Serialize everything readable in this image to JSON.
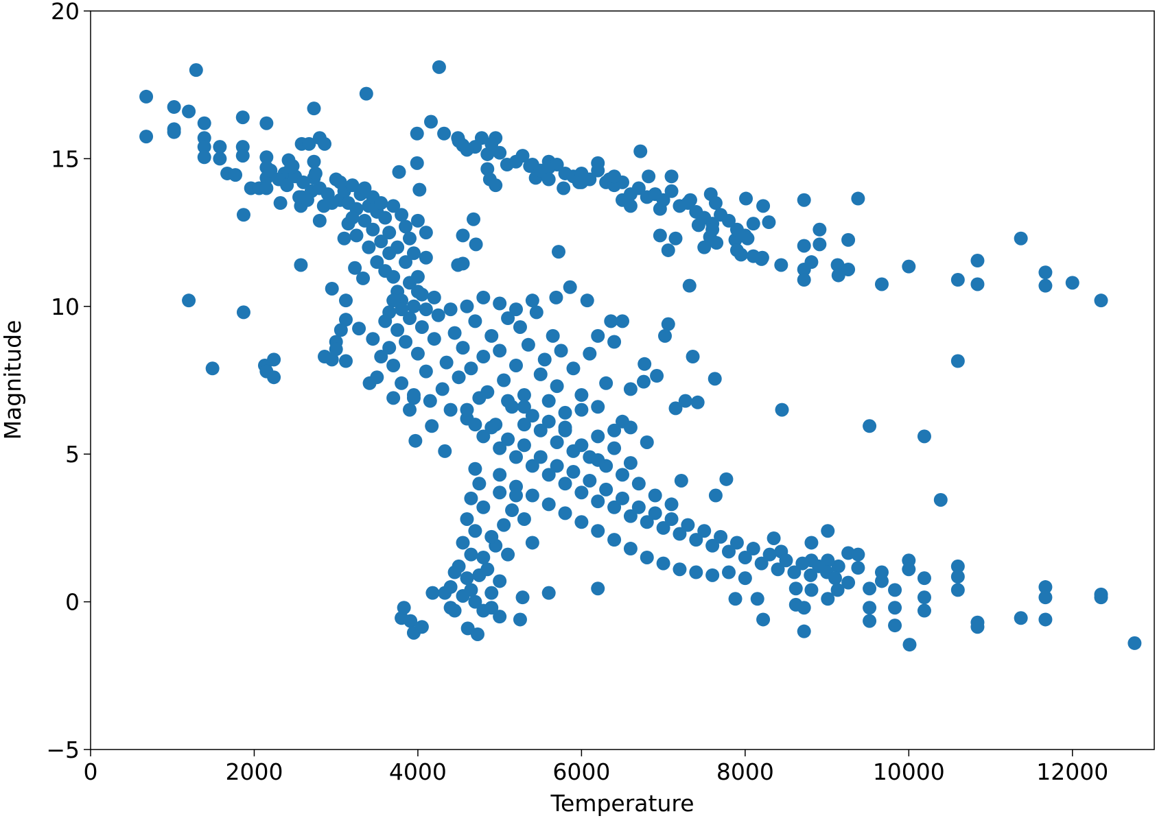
{
  "chart_data": {
    "type": "scatter",
    "x_label": "Temperature",
    "y_label": "Magnitude",
    "color": "#1f77b4",
    "xlim": [
      0,
      13000
    ],
    "ylim": [
      -5,
      20
    ],
    "xticks": [
      0,
      2000,
      4000,
      6000,
      8000,
      10000,
      12000
    ],
    "yticks": [
      {
        "value": -5,
        "label": "−5"
      },
      0,
      5,
      10,
      15,
      20
    ],
    "x": [
      680,
      680,
      1020,
      1020,
      1020,
      1200,
      1290,
      1200,
      1390,
      1390,
      1390,
      1390,
      1490,
      1580,
      1580,
      1670,
      1770,
      1860,
      1860,
      1860,
      1870,
      1870,
      1960,
      2060,
      2150,
      2150,
      2150,
      2150,
      2150,
      2130,
      2150,
      2240,
      2240,
      2320,
      2370,
      2420,
      2470,
      2570,
      2580,
      2570,
      2580,
      2670,
      2730,
      2730,
      2730,
      2800,
      2860,
      2800,
      2860,
      2950,
      2950,
      3000,
      3000,
      3060,
      3120,
      3120,
      3120,
      3370,
      3280,
      3330,
      3230,
      3410,
      3770,
      4020,
      3990,
      3990,
      4160,
      4260,
      4320,
      4490,
      4550,
      4680,
      4550,
      4710,
      4550,
      4490,
      4100,
      3950,
      3970,
      4170,
      4330,
      4780,
      4850,
      4850,
      4880,
      4950,
      4950,
      5090,
      5280,
      5370,
      5440,
      5600,
      5720,
      5780,
      5970,
      6200,
      6340,
      6500,
      6720,
      6820,
      6960,
      7100,
      6960,
      7060,
      7150,
      7320,
      7330,
      7580,
      7640,
      7430,
      7570,
      7650,
      7880,
      8010,
      8220,
      8290,
      7950,
      8030,
      8210,
      8440,
      8720,
      8720,
      8720,
      8720,
      8910,
      8910,
      8810,
      9130,
      9140,
      9260,
      9260,
      9380,
      9670,
      10000,
      10600,
      10840,
      10840,
      11370,
      11670,
      11670,
      12000,
      12350,
      10600,
      9520,
      10190,
      10390,
      8450,
      7360,
      7630,
      7420,
      7270,
      7150,
      7060,
      7020,
      6920,
      6770,
      6760,
      6070,
      5690,
      5860,
      6360,
      6500,
      6200,
      4180,
      4330,
      3800,
      3830,
      3910,
      3950,
      4050,
      4610,
      4730,
      4450,
      5250,
      5280,
      5600,
      6200,
      7220,
      7640,
      7770,
      8220,
      8720,
      8150,
      7880,
      10010,
      9830,
      9830,
      9830,
      10000,
      10000,
      10190,
      10190,
      10190,
      9520,
      9520,
      9520,
      9670,
      9670,
      10600,
      10600,
      10600,
      10840,
      10840,
      11370,
      11670,
      11670,
      11670,
      12350,
      12350,
      12760,
      9010,
      8810,
      8620,
      8620,
      8720,
      8810,
      9010,
      9130,
      9260,
      9260,
      9380,
      9380,
      9140,
      9010,
      8810,
      8350,
      8440,
      2200,
      2300,
      2400,
      2500,
      2600,
      2700,
      2800,
      2900,
      3000,
      3050,
      3100,
      3150,
      3200,
      3250,
      3300,
      3350,
      3400,
      3450,
      3500,
      3550,
      3600,
      3650,
      3700,
      3750,
      3800,
      3850,
      3900,
      3950,
      2450,
      2550,
      2650,
      2750,
      2850,
      2950,
      3050,
      3150,
      3250,
      3350,
      3450,
      3550,
      3650,
      3100,
      3200,
      3400,
      3500,
      3600,
      3700,
      3750,
      3800,
      3850,
      3900,
      3950,
      4000,
      4050,
      4100,
      4000,
      3700,
      3650,
      3600,
      3650,
      3700,
      3750,
      3800,
      3850,
      3900,
      3950,
      4000,
      4050,
      4100,
      4150,
      4200,
      4250,
      4300,
      4350,
      4400,
      4450,
      4500,
      4550,
      4600,
      4650,
      4700,
      4750,
      4800,
      4850,
      4900,
      4950,
      5000,
      5050,
      5100,
      5150,
      5200,
      5250,
      5300,
      5350,
      5400,
      5450,
      5500,
      5550,
      5600,
      5650,
      5700,
      5750,
      5800,
      5900,
      6000,
      6100,
      6200,
      6300,
      6400,
      6500,
      6600,
      3550,
      3500,
      3450,
      3700,
      3900,
      4100,
      4400,
      4600,
      4800,
      5000,
      5200,
      5400,
      3800,
      4000,
      4200,
      4600,
      4700,
      4800,
      4900,
      5000,
      5100,
      5200,
      5300,
      5400,
      5500,
      5600,
      5700,
      5800,
      5900,
      6000,
      6100,
      6200,
      6300,
      6400,
      6500,
      6600,
      6700,
      6800,
      6900,
      7000,
      7100,
      7200,
      7300,
      7400,
      7500,
      7600,
      7700,
      7800,
      7900,
      8000,
      8100,
      8200,
      8300,
      8400,
      8500,
      8600,
      8700,
      8800,
      8900,
      9000,
      9100,
      5000,
      5200,
      5400,
      5600,
      5800,
      6000,
      6200,
      6400,
      6600,
      6800,
      7000,
      7200,
      7400,
      7600,
      7800,
      8000,
      5300,
      5500,
      5700,
      5900,
      6100,
      6300,
      6500,
      6700,
      6900,
      7100,
      5100,
      5300,
      5600,
      5800,
      6000,
      6200,
      6400,
      6600,
      6800,
      6600,
      6400,
      6200,
      6000,
      5800,
      4700,
      4750,
      4650,
      4800,
      4600,
      4700,
      4550,
      4650,
      4500,
      4600,
      4400,
      4550,
      4700,
      4800,
      4900,
      5000,
      4850,
      4950,
      5050,
      5150,
      4900,
      4800,
      4750,
      4650,
      4450,
      5000,
      4900,
      4400,
      5300,
      5100,
      5000,
      5200,
      5400,
      4500,
      4700,
      4900,
      5000,
      5200,
      5400,
      5500,
      5600,
      5700,
      5800,
      5900,
      6000,
      6100,
      6200,
      6300,
      6400,
      6500,
      6600,
      6700,
      6800,
      6900,
      7000,
      7100,
      7200,
      7300,
      7400,
      7500,
      7600,
      7700,
      7800,
      7900,
      8000,
      8100,
      8200,
      7500,
      7600,
      7900,
      8100,
      6600,
      6400,
      6000,
      5600,
      4600
    ],
    "values": [
      17.1,
      15.75,
      16.75,
      16.0,
      15.9,
      16.6,
      18.0,
      10.2,
      16.2,
      15.7,
      15.4,
      15.05,
      7.9,
      15.4,
      15.0,
      14.5,
      14.45,
      16.4,
      15.4,
      15.1,
      13.1,
      9.8,
      14.0,
      14.0,
      16.2,
      15.05,
      14.7,
      14.35,
      14.0,
      8.0,
      7.8,
      8.2,
      7.6,
      13.5,
      14.5,
      14.95,
      14.75,
      11.4,
      15.5,
      13.4,
      13.7,
      15.5,
      16.7,
      14.9,
      14.35,
      15.7,
      15.5,
      12.9,
      8.3,
      10.6,
      8.2,
      8.8,
      8.55,
      9.2,
      10.2,
      9.55,
      8.15,
      17.2,
      9.25,
      10.95,
      11.3,
      7.4,
      14.55,
      13.95,
      15.85,
      14.85,
      16.25,
      18.1,
      15.85,
      15.7,
      15.45,
      12.95,
      12.4,
      12.1,
      11.45,
      11.4,
      11.65,
      6.9,
      5.45,
      5.95,
      5.1,
      15.7,
      15.15,
      14.65,
      14.3,
      15.7,
      14.1,
      14.8,
      15.1,
      14.75,
      14.35,
      14.9,
      11.85,
      14.0,
      14.2,
      14.85,
      14.3,
      13.6,
      15.25,
      14.4,
      13.3,
      14.4,
      12.4,
      11.9,
      12.3,
      10.7,
      13.6,
      13.8,
      13.5,
      12.75,
      12.35,
      12.15,
      12.25,
      13.65,
      13.4,
      12.85,
      11.75,
      12.3,
      11.65,
      11.4,
      13.6,
      12.05,
      11.25,
      10.9,
      12.6,
      12.1,
      11.5,
      11.4,
      11.05,
      12.25,
      11.25,
      13.65,
      10.75,
      11.35,
      10.9,
      11.55,
      10.75,
      12.3,
      11.15,
      10.7,
      10.8,
      10.2,
      8.15,
      5.95,
      5.6,
      3.45,
      6.5,
      8.3,
      7.55,
      6.75,
      6.8,
      6.55,
      9.4,
      9.0,
      7.65,
      8.05,
      7.45,
      10.2,
      10.3,
      10.65,
      9.5,
      9.5,
      9.0,
      0.3,
      0.3,
      -0.55,
      -0.2,
      -0.65,
      -1.05,
      -0.85,
      -0.9,
      -1.1,
      -0.3,
      -0.6,
      0.15,
      0.3,
      0.45,
      4.1,
      3.6,
      4.15,
      -0.6,
      -1.0,
      0.1,
      0.1,
      -1.45,
      -0.8,
      -0.2,
      0.4,
      1.4,
      1.1,
      0.8,
      0.15,
      -0.3,
      -0.65,
      -0.2,
      0.45,
      0.7,
      1.0,
      1.2,
      0.85,
      0.4,
      -0.7,
      -0.85,
      -0.55,
      0.5,
      0.15,
      -0.6,
      0.25,
      0.15,
      -1.4,
      2.4,
      2.0,
      0.45,
      -0.1,
      -0.2,
      0.4,
      0.1,
      0.4,
      0.65,
      1.65,
      1.6,
      1.15,
      1.2,
      1.4,
      1.4,
      2.15,
      1.7,
      14.6,
      14.3,
      14.1,
      14.4,
      14.2,
      13.9,
      14.0,
      13.8,
      14.3,
      13.6,
      13.9,
      13.5,
      14.1,
      13.3,
      13.8,
      12.9,
      13.4,
      12.6,
      13.2,
      12.2,
      13.0,
      12.5,
      13.4,
      12.0,
      13.1,
      12.7,
      12.3,
      11.8,
      14.7,
      13.7,
      13.6,
      14.5,
      13.4,
      13.5,
      14.2,
      12.8,
      12.4,
      14.0,
      13.7,
      13.5,
      11.8,
      12.3,
      13.0,
      12.0,
      11.5,
      11.2,
      11.0,
      10.5,
      10.2,
      11.5,
      10.8,
      10.0,
      11.0,
      10.4,
      12.5,
      12.9,
      10.2,
      9.8,
      9.5,
      8.6,
      8.0,
      9.2,
      7.4,
      8.8,
      9.6,
      7.0,
      8.4,
      9.3,
      7.8,
      6.8,
      8.9,
      9.7,
      7.2,
      8.1,
      6.5,
      9.1,
      7.6,
      8.6,
      6.2,
      7.9,
      9.5,
      6.9,
      8.3,
      7.1,
      9.0,
      6.0,
      8.5,
      7.5,
      9.6,
      6.6,
      8.0,
      9.3,
      7.0,
      8.7,
      6.3,
      9.8,
      7.7,
      8.2,
      6.8,
      9.0,
      7.3,
      8.5,
      6.4,
      7.9,
      7.0,
      8.4,
      6.6,
      7.4,
      8.8,
      6.1,
      7.2,
      8.3,
      7.6,
      8.9,
      6.9,
      6.5,
      9.9,
      9.9,
      10.0,
      10.3,
      10.1,
      9.9,
      10.2,
      9.9,
      10.5,
      10.3,
      6.5,
      6.0,
      5.6,
      5.9,
      5.2,
      5.5,
      4.9,
      5.3,
      4.6,
      4.9,
      4.3,
      4.6,
      4.0,
      4.4,
      3.7,
      4.1,
      3.4,
      3.8,
      3.2,
      3.5,
      2.9,
      3.2,
      2.7,
      3.0,
      2.5,
      2.8,
      2.3,
      2.6,
      2.1,
      2.4,
      1.9,
      2.2,
      1.7,
      2.0,
      1.5,
      1.8,
      1.3,
      1.6,
      1.1,
      1.4,
      1.0,
      1.3,
      0.9,
      1.2,
      1.0,
      0.8,
      4.3,
      3.9,
      3.6,
      3.3,
      3.0,
      2.7,
      2.4,
      2.1,
      1.8,
      1.5,
      1.3,
      1.1,
      1.0,
      0.9,
      1.0,
      0.8,
      6.0,
      5.8,
      5.4,
      5.1,
      4.9,
      4.6,
      4.3,
      4.0,
      3.6,
      3.3,
      6.8,
      6.6,
      6.1,
      5.8,
      5.3,
      4.8,
      5.2,
      4.7,
      5.4,
      5.9,
      5.8,
      5.6,
      6.5,
      5.9,
      4.5,
      4.0,
      3.5,
      3.2,
      2.8,
      2.4,
      2.0,
      1.6,
      1.2,
      0.8,
      0.5,
      0.2,
      0.0,
      -0.3,
      0.3,
      0.7,
      1.1,
      1.9,
      2.6,
      3.1,
      2.2,
      1.5,
      0.9,
      0.4,
      1.0,
      -0.5,
      -0.2,
      -0.2,
      2.8,
      1.6,
      3.7,
      3.6,
      2.0,
      15.6,
      15.4,
      15.5,
      15.2,
      14.9,
      14.8,
      14.6,
      14.7,
      14.8,
      14.5,
      14.4,
      14.5,
      14.3,
      14.6,
      14.2,
      14.1,
      14.2,
      13.8,
      14.0,
      13.7,
      13.8,
      13.6,
      13.9,
      13.4,
      13.5,
      13.2,
      13.0,
      12.8,
      13.1,
      12.9,
      12.6,
      12.4,
      12.8,
      11.6,
      12.0,
      12.6,
      11.9,
      11.7,
      13.4,
      14.4,
      14.2,
      14.3,
      15.3
    ]
  }
}
